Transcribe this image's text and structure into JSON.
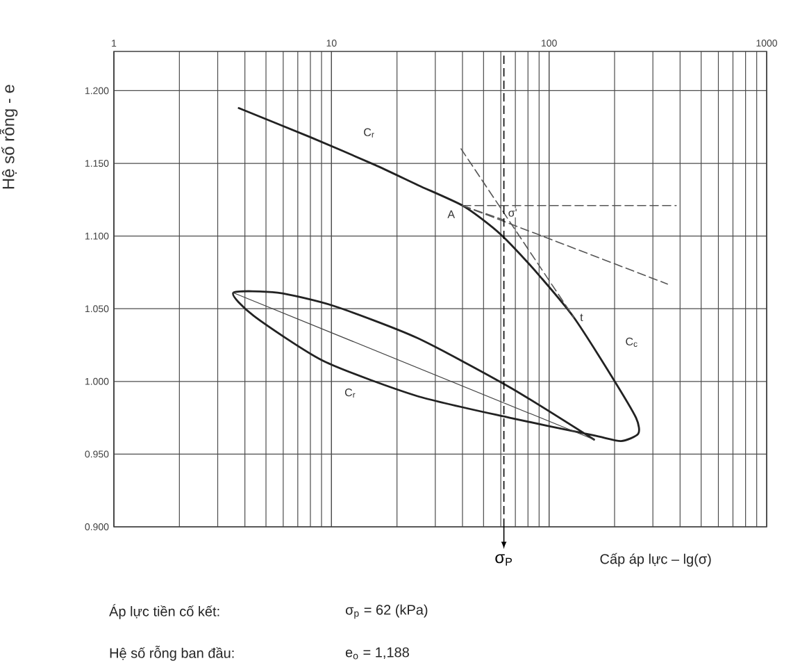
{
  "chart_data": {
    "type": "line",
    "xlabel": "Cấp áp lực – lg(σ)",
    "ylabel": "Hệ số rỗng - e",
    "log": "x",
    "xlim": [
      1,
      1000
    ],
    "xticks": [
      1,
      10,
      100,
      1000
    ],
    "ylim": [
      0.9,
      1.227
    ],
    "yticks": [
      {
        "value": 0.9,
        "label": "0.900"
      },
      {
        "value": 0.95,
        "label": "0.950"
      },
      {
        "value": 1.0,
        "label": "1.000"
      },
      {
        "value": 1.05,
        "label": "1.050"
      },
      {
        "value": 1.1,
        "label": "1.100"
      },
      {
        "value": 1.15,
        "label": "1.150"
      },
      {
        "value": 1.2,
        "label": "1.200"
      }
    ],
    "grid": true,
    "series": [
      {
        "color": "#222222",
        "line_style": "solid",
        "x": [
          3.75,
          8,
          15.8,
          25,
          40,
          55,
          67,
          92.4,
          130,
          193,
          251,
          257,
          214,
          159,
          66,
          24.7,
          9.2,
          4.4,
          3.54,
          5.66,
          10.2,
          24.7,
          66,
          161
        ],
        "values": [
          1.188,
          1.168,
          1.149,
          1.135,
          1.121,
          1.106,
          1.094,
          1.071,
          1.044,
          1.004,
          0.975,
          0.964,
          0.959,
          0.963,
          0.975,
          0.99,
          1.014,
          1.045,
          1.061,
          1.061,
          1.052,
          1.03,
          0.996,
          0.96
        ]
      },
      {
        "color": "#444444",
        "line_style": "solid",
        "x": [
          3.54,
          161
        ],
        "values": [
          1.061,
          0.96
        ]
      },
      {
        "color": "#555555",
        "line_style": "dashed",
        "x": [
          40,
          384
        ],
        "values": [
          1.121,
          1.121
        ]
      },
      {
        "color": "#555555",
        "line_style": "dashed",
        "x": [
          40,
          350
        ],
        "values": [
          1.121,
          1.067
        ]
      },
      {
        "color": "#555555",
        "line_style": "dashed",
        "x": [
          39.4,
          130
        ],
        "values": [
          1.16,
          1.044
        ]
      },
      {
        "color": "#555555",
        "line_style": "dashed",
        "x": [
          40,
          62
        ],
        "values": [
          1.121,
          1.111
        ]
      }
    ],
    "ref_lines": [
      {
        "axis": "x",
        "value": 62,
        "label": "σ$_{P}$",
        "line_style": "dashed"
      }
    ],
    "annotations": [
      {
        "text": "C$_{r}$",
        "x": 14.9,
        "y": 1.171
      },
      {
        "text": "A",
        "x": 35.5,
        "y": 1.115
      },
      {
        "text": "σ'",
        "x": 68,
        "y": 1.116
      },
      {
        "text": "t",
        "x": 141,
        "y": 1.044
      },
      {
        "text": "C$_{c}$",
        "x": 240,
        "y": 1.027
      },
      {
        "text": "C$_{r}$",
        "x": 12.2,
        "y": 0.992
      },
      "Áp lực tiền cố kết:",
      "σ$_{p}$ = 62 (kPa)",
      "Hệ số rỗng ban đầu:",
      "e$_{o}$ = 1,188"
    ]
  }
}
